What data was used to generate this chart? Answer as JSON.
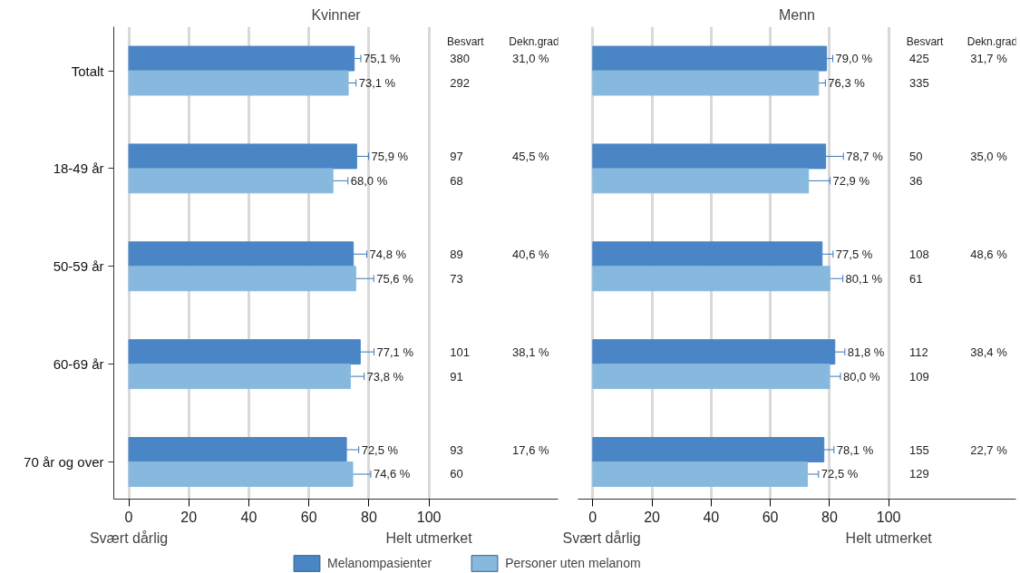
{
  "chart_data": [
    {
      "type": "bar",
      "orientation": "horizontal",
      "title": "Kvinner",
      "categories": [
        "Totalt",
        "18-49 år",
        "50-59 år",
        "60-69 år",
        "70 år og over"
      ],
      "series": [
        {
          "name": "Melanompasienter",
          "color": "#4a86c5",
          "values": [
            75.1,
            75.9,
            74.8,
            77.1,
            72.5
          ],
          "errors": [
            2.2,
            4.0,
            4.5,
            4.6,
            4.1
          ],
          "value_labels": [
            "75,1 %",
            "75,9 %",
            "74,8 %",
            "77,1 %",
            "72,5 %"
          ]
        },
        {
          "name": "Personer uten melanom",
          "color": "#87b9df",
          "values": [
            73.1,
            68.0,
            75.6,
            73.8,
            74.6
          ],
          "errors": [
            2.6,
            5.0,
            6.0,
            4.6,
            6.0
          ],
          "value_labels": [
            "73,1 %",
            "68,0 %",
            "75,6 %",
            "73,8 %",
            "74,6 %"
          ]
        }
      ],
      "xlim": [
        -5,
        143
      ],
      "xticks": [
        0,
        20,
        40,
        60,
        80,
        100
      ],
      "grid": "x",
      "legend": "bottom",
      "annotations": [
        "Svært dårlig",
        "Helt utmerket",
        "Besvart",
        "Dekn.grad",
        "380",
        "292",
        "31,0 %",
        "97",
        "68",
        "45,5 %",
        "89",
        "73",
        "40,6 %",
        "101",
        "91",
        "38,1 %",
        "93",
        "60",
        "17,6 %"
      ]
    },
    {
      "type": "bar",
      "orientation": "horizontal",
      "title": "Menn",
      "categories": [
        null,
        null,
        null,
        null,
        null
      ],
      "series": [
        {
          "color": "#4a86c5",
          "values": [
            79.0,
            78.7,
            77.5,
            81.8,
            78.1
          ],
          "errors": [
            2.1,
            6.0,
            3.7,
            3.4,
            3.4
          ],
          "value_labels": [
            "79,0 %",
            "78,7 %",
            "77,5 %",
            "81,8 %",
            "78,1 %"
          ]
        },
        {
          "color": "#87b9df",
          "values": [
            76.3,
            72.9,
            80.1,
            80.0,
            72.5
          ],
          "errors": [
            2.3,
            7.3,
            4.4,
            3.7,
            3.8
          ],
          "value_labels": [
            "76,3 %",
            "72,9 %",
            "80,1 %",
            "80,0 %",
            "72,5 %"
          ]
        }
      ],
      "xlim": [
        -5,
        143
      ],
      "xticks": [
        0,
        20,
        40,
        60,
        80,
        100
      ],
      "grid": "x",
      "tick_labels": "x",
      "annotations": [
        "Svært dårlig",
        "Helt utmerket",
        "Besvart",
        "Dekn.grad",
        "425",
        "335",
        "31,7 %",
        "50",
        "36",
        "35,0 %",
        "108",
        "61",
        "48,6 %",
        "112",
        "109",
        "38,4 %",
        "155",
        "129",
        "22,7 %"
      ]
    }
  ]
}
